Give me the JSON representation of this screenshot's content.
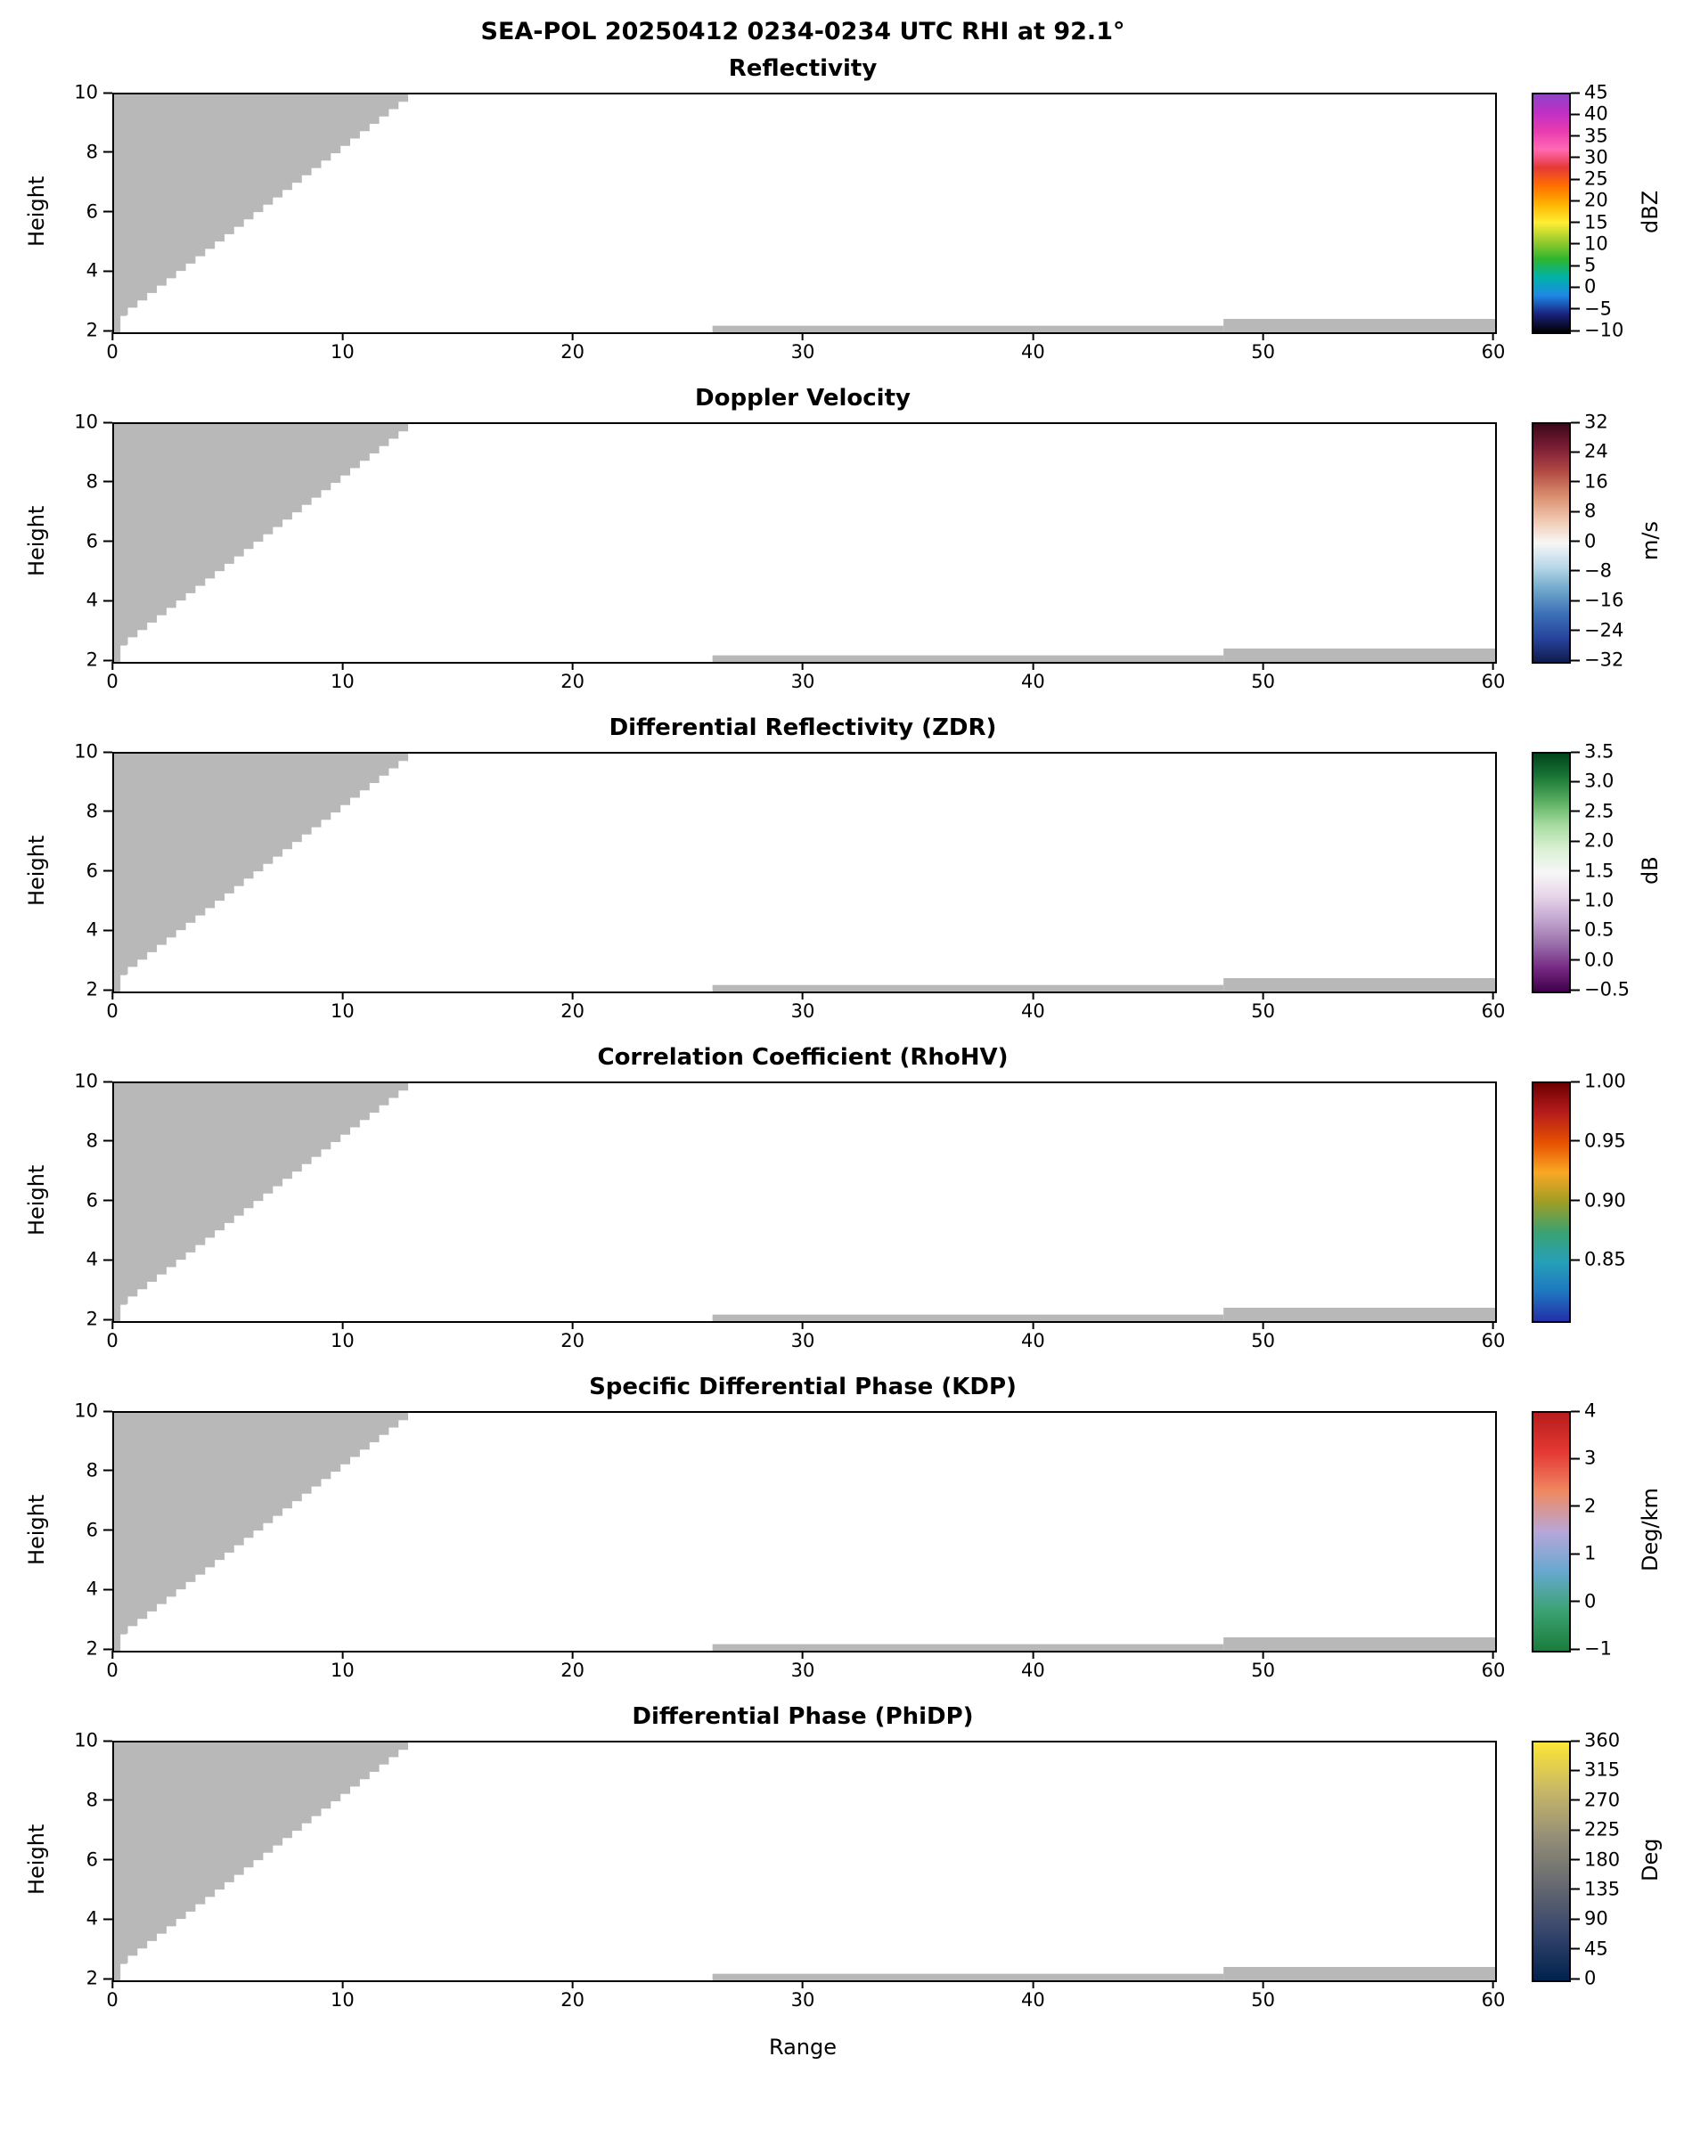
{
  "chart_data": {
    "type": "heatmap",
    "title": "SEA-POL 20250412 0234-0234 UTC RHI at 92.1°",
    "axes": {
      "x_label": "Range",
      "y_label": "Height",
      "x_range": [
        0,
        60
      ],
      "y_range": [
        2,
        10
      ],
      "x_tick_values": [
        0,
        10,
        20,
        30,
        40,
        50,
        60
      ],
      "x_tick_labels": [
        "0",
        "10",
        "20",
        "30",
        "40",
        "50",
        "60"
      ],
      "y_tick_values": [
        2,
        4,
        6,
        8,
        10
      ],
      "y_tick_labels": [
        "2",
        "4",
        "6",
        "8",
        "10"
      ],
      "grid": false
    },
    "no_data_mask": {
      "color": "#b8b8b8",
      "wedge": {
        "x0": 0.55,
        "y0": 2.55,
        "x1": 13.2,
        "y1": 10.0,
        "step": 0.42,
        "tail": [
          [
            0.28,
            2.55
          ],
          [
            0.28,
            2.0
          ],
          [
            0.0,
            2.0
          ]
        ]
      },
      "strips": [
        {
          "x0": 26.0,
          "x1": 48.2,
          "y0": 2.0,
          "y1": 2.22
        },
        {
          "x0": 48.2,
          "x1": 60.0,
          "y0": 2.0,
          "y1": 2.45
        }
      ]
    },
    "panels": [
      {
        "id": "reflectivity",
        "title": "Reflectivity",
        "cbar": {
          "label": "dBZ",
          "min": -10,
          "max": 45,
          "tick_values": [
            45,
            40,
            35,
            30,
            25,
            20,
            15,
            10,
            5,
            0,
            -5,
            -10
          ],
          "tick_labels": [
            "45",
            "40",
            "35",
            "30",
            "25",
            "20",
            "15",
            "10",
            "5",
            "0",
            "−5",
            "−10"
          ],
          "colors": [
            "#8e44c8",
            "#c02fc4",
            "#e83bb0",
            "#ff69b4",
            "#e53935",
            "#ff6f00",
            "#ffb300",
            "#ffee33",
            "#9ccc2e",
            "#2eb52e",
            "#00b2a9",
            "#1e88e5",
            "#1a237e",
            "#000000"
          ]
        }
      },
      {
        "id": "doppler_velocity",
        "title": "Doppler Velocity",
        "cbar": {
          "label": "m/s",
          "min": -32,
          "max": 32,
          "tick_values": [
            32,
            24,
            16,
            8,
            0,
            -8,
            -16,
            -24,
            -32
          ],
          "tick_labels": [
            "32",
            "24",
            "16",
            "8",
            "0",
            "−8",
            "−16",
            "−24",
            "−32"
          ],
          "colors": [
            "#3c0818",
            "#7c1d36",
            "#b14a43",
            "#d98c6d",
            "#f0c6ae",
            "#f7f7f7",
            "#b8d8e8",
            "#6da5cb",
            "#3b6fb6",
            "#27449c",
            "#101c4e"
          ]
        }
      },
      {
        "id": "zdr",
        "title": "Differential Reflectivity (ZDR)",
        "cbar": {
          "label": "dB",
          "min": -0.5,
          "max": 3.5,
          "tick_values": [
            3.5,
            3.0,
            2.5,
            2.0,
            1.5,
            1.0,
            0.5,
            0.0,
            -0.5
          ],
          "tick_labels": [
            "3.5",
            "3.0",
            "2.5",
            "2.0",
            "1.5",
            "1.0",
            "0.5",
            "0.0",
            "−0.5"
          ],
          "colors": [
            "#00441b",
            "#1b7837",
            "#5aae61",
            "#a6dba0",
            "#d9f0d3",
            "#f7f7f7",
            "#e7d4e8",
            "#c2a5cf",
            "#9970ab",
            "#762a83",
            "#40004b"
          ]
        }
      },
      {
        "id": "rhohv",
        "title": "Correlation Coefficient (RhoHV)",
        "cbar": {
          "label": "",
          "min": 0.8,
          "max": 1.0,
          "tick_values": [
            1.0,
            0.95,
            0.9,
            0.85
          ],
          "tick_labels": [
            "1.00",
            "0.95",
            "0.90",
            "0.85"
          ],
          "colors": [
            "#6e0000",
            "#b71c1c",
            "#e65100",
            "#f9a825",
            "#9e9d24",
            "#3ba272",
            "#26a0b8",
            "#1f78c1",
            "#2330a8"
          ]
        }
      },
      {
        "id": "kdp",
        "title": "Specific Differential Phase (KDP)",
        "cbar": {
          "label": "Deg/km",
          "min": -1,
          "max": 4,
          "tick_values": [
            4,
            3,
            2,
            1,
            0,
            -1
          ],
          "tick_labels": [
            "4",
            "3",
            "2",
            "1",
            "0",
            "−1"
          ],
          "colors": [
            "#b71c1c",
            "#e53935",
            "#ef8a62",
            "#b7a6d9",
            "#67a9cf",
            "#3ba272",
            "#1a7d3c"
          ]
        }
      },
      {
        "id": "phidp",
        "title": "Differential Phase (PhiDP)",
        "cbar": {
          "label": "Deg",
          "min": 0,
          "max": 360,
          "tick_values": [
            360,
            315,
            270,
            225,
            180,
            135,
            90,
            45,
            0
          ],
          "tick_labels": [
            "360",
            "315",
            "270",
            "225",
            "180",
            "135",
            "90",
            "45",
            "0"
          ],
          "colors": [
            "#fde636",
            "#c8b866",
            "#948e77",
            "#666970",
            "#35456c",
            "#00224e"
          ]
        }
      }
    ]
  }
}
